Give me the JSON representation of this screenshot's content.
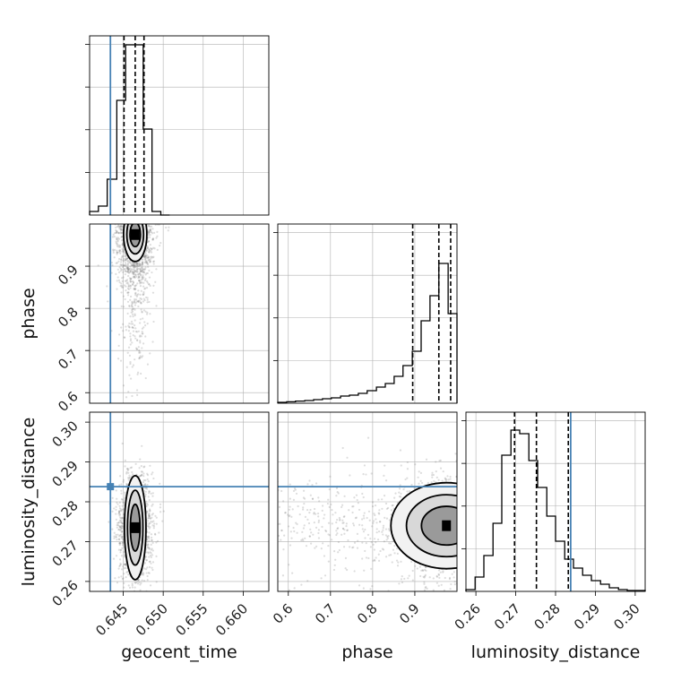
{
  "colors": {
    "truth": "#4682b4",
    "hist": "#000000",
    "grid": "#b0b0b0",
    "scatter": "#777777",
    "quantile": "#000000"
  },
  "chart_data": {
    "type": "corner",
    "parameters": [
      "geocent_time",
      "phase",
      "luminosity_distance"
    ],
    "truths": {
      "geocent_time": 0.6434,
      "phase": null,
      "luminosity_distance": 0.2838
    },
    "ranges": {
      "geocent_time": [
        0.6408,
        0.6632
      ],
      "phase": [
        0.575,
        1.0
      ],
      "luminosity_distance": [
        0.2575,
        0.3025
      ]
    },
    "ticks": {
      "geocent_time": [
        "0.645",
        "0.650",
        "0.655",
        "0.660"
      ],
      "phase": [
        "0.6",
        "0.7",
        "0.8",
        "0.9"
      ],
      "luminosity_distance": [
        "0.26",
        "0.27",
        "0.28",
        "0.29",
        "0.30"
      ]
    },
    "tick_values": {
      "geocent_time": [
        0.645,
        0.65,
        0.655,
        0.66
      ],
      "phase": [
        0.6,
        0.7,
        0.8,
        0.9
      ],
      "luminosity_distance": [
        0.26,
        0.27,
        0.28,
        0.29,
        0.3
      ]
    },
    "quantiles": {
      "geocent_time": [
        0.6451,
        0.6465,
        0.6476
      ],
      "phase": [
        0.895,
        0.957,
        0.985
      ],
      "luminosity_distance": [
        0.2697,
        0.2752,
        0.2832
      ]
    },
    "histograms": {
      "geocent_time": {
        "edges": [
          0.6408,
          0.6419,
          0.643,
          0.6442,
          0.6453,
          0.6464,
          0.6475,
          0.6486,
          0.6497,
          0.6508
        ],
        "counts": [
          0.02,
          0.05,
          0.2,
          0.64,
          0.95,
          0.95,
          0.48,
          0.02,
          0.0
        ]
      },
      "phase": {
        "edges": [
          0.575,
          0.596,
          0.617,
          0.639,
          0.66,
          0.681,
          0.702,
          0.724,
          0.745,
          0.766,
          0.787,
          0.809,
          0.83,
          0.851,
          0.872,
          0.894,
          0.915,
          0.936,
          0.957,
          0.979,
          1.0
        ],
        "counts": [
          0.005,
          0.008,
          0.012,
          0.015,
          0.02,
          0.025,
          0.03,
          0.04,
          0.045,
          0.055,
          0.07,
          0.09,
          0.11,
          0.15,
          0.21,
          0.29,
          0.46,
          0.6,
          0.78,
          0.5
        ]
      },
      "luminosity_distance": {
        "edges": [
          0.2575,
          0.2598,
          0.262,
          0.2643,
          0.2665,
          0.2688,
          0.271,
          0.2733,
          0.2755,
          0.2778,
          0.28,
          0.2823,
          0.2845,
          0.2868,
          0.289,
          0.2913,
          0.2935,
          0.2958,
          0.298,
          0.3003,
          0.3025
        ],
        "counts": [
          0.01,
          0.08,
          0.2,
          0.38,
          0.76,
          0.9,
          0.88,
          0.73,
          0.58,
          0.42,
          0.28,
          0.18,
          0.13,
          0.09,
          0.06,
          0.04,
          0.02,
          0.01,
          0.005,
          0.005
        ]
      }
    },
    "posterior_2d": {
      "geocent_time_vs_phase": {
        "mode": [
          0.6465,
          0.975
        ]
      },
      "geocent_time_vs_luminosity_distance": {
        "mode": [
          0.6465,
          0.2735
        ]
      },
      "phase_vs_luminosity_distance": {
        "mode": [
          0.975,
          0.274
        ]
      }
    },
    "grid": true
  }
}
